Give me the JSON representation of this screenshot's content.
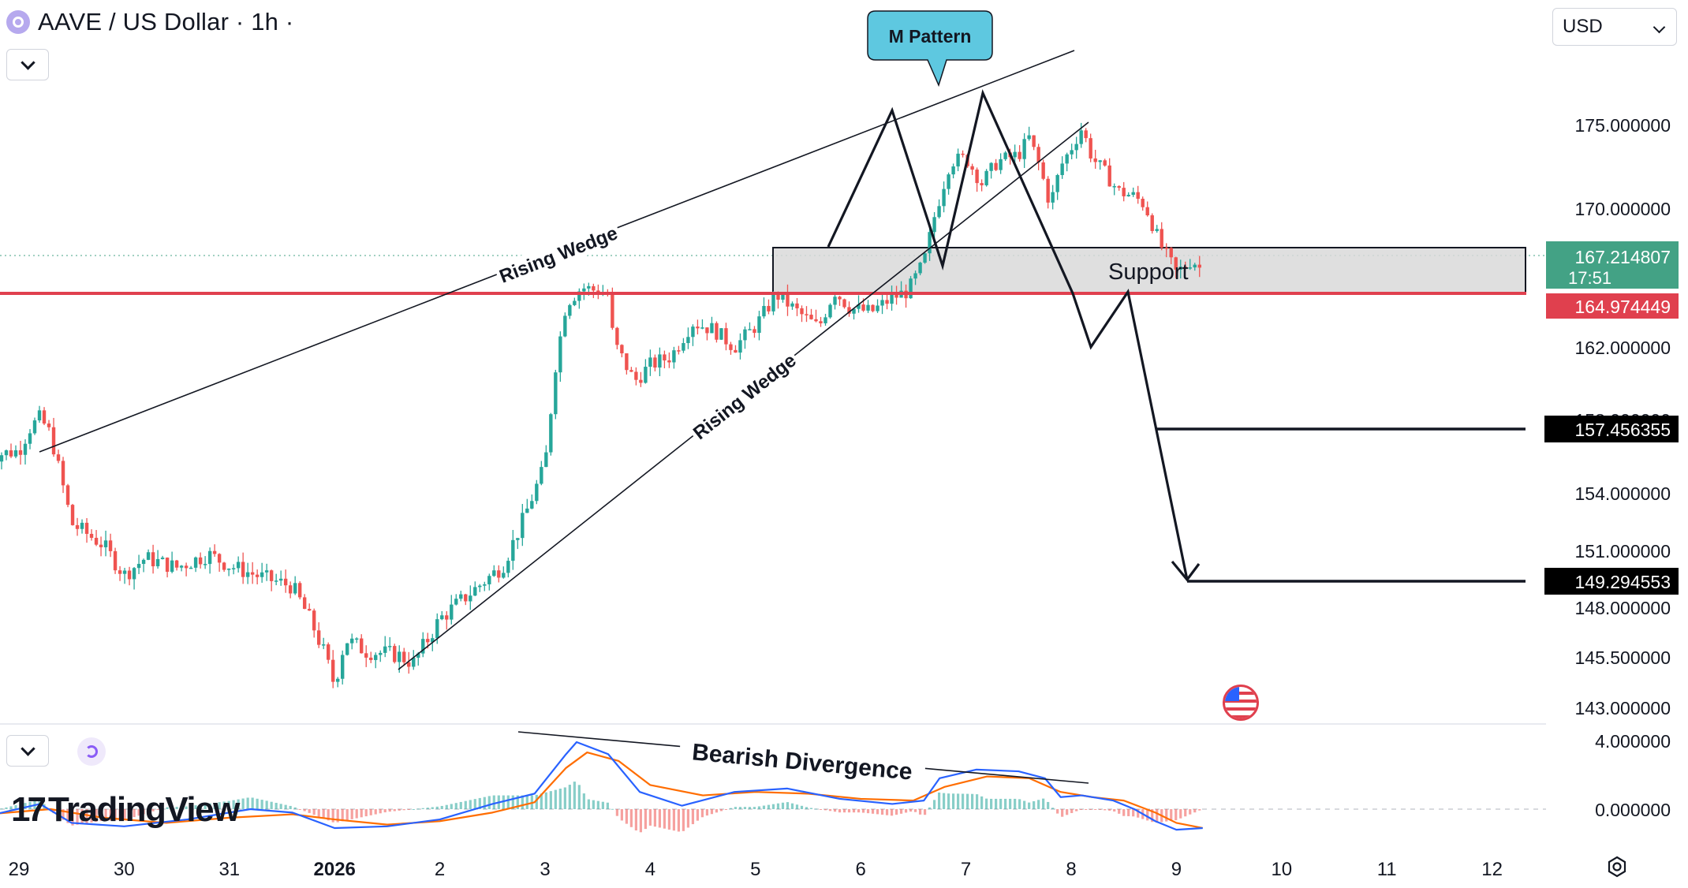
{
  "header": {
    "title": "AAVE / US Dollar · 1h ·",
    "currency": "USD"
  },
  "brand": {
    "logo_text": "TradingView",
    "logo_mark": "17"
  },
  "colors": {
    "up": "#26a69a",
    "down": "#ef5350",
    "accent_red": "#e0404e",
    "callout": "#5ec8e0",
    "macd_line": "#2962ff",
    "signal_line": "#ff6d00",
    "current_price_bg": "#43a285",
    "zone_fill": "#d9d9d9"
  },
  "icons": [
    "chevron-down-icon",
    "refresh-icon",
    "settings-icon",
    "us-flag-icon",
    "aave-icon"
  ],
  "chart_data": {
    "type": "candlestick",
    "title": "AAVE / US Dollar · 1h ·",
    "x_ticks": [
      "29",
      "30",
      "31",
      "2026",
      "2",
      "3",
      "4",
      "5",
      "6",
      "7",
      "8",
      "9",
      "10",
      "11",
      "12"
    ],
    "y_ticks": [
      "175.000000",
      "170.000000",
      "162.000000",
      "158.000000",
      "154.000000",
      "151.000000",
      "148.000000",
      "145.500000",
      "143.000000"
    ],
    "ylim": [
      142.5,
      177.5
    ],
    "current_price": "167.214807",
    "countdown": "17:51",
    "support_level": "164.974449",
    "targets": [
      "157.456355",
      "149.294553"
    ],
    "annotations": {
      "pattern": "M Pattern",
      "support": "Support",
      "wedge_upper": "Rising Wedge",
      "wedge_lower": "Rising Wedge",
      "divergence": "Bearish Divergence"
    },
    "close_path": [
      [
        28.7,
        156.0
      ],
      [
        29.0,
        156.3
      ],
      [
        29.1,
        157.5
      ],
      [
        29.2,
        158.1
      ],
      [
        29.3,
        157.2
      ],
      [
        29.5,
        152.4
      ],
      [
        29.8,
        151.3
      ],
      [
        30.0,
        149.7
      ],
      [
        30.2,
        150.6
      ],
      [
        30.5,
        150.1
      ],
      [
        30.8,
        150.8
      ],
      [
        31.0,
        150.2
      ],
      [
        31.3,
        149.6
      ],
      [
        31.6,
        149.1
      ],
      [
        31.8,
        147.0
      ],
      [
        31.9,
        145.7
      ],
      [
        32.0,
        144.1
      ],
      [
        32.1,
        146.4
      ],
      [
        32.3,
        145.8
      ],
      [
        32.6,
        145.6
      ],
      [
        32.75,
        145.2
      ],
      [
        33.0,
        147.4
      ],
      [
        33.3,
        148.8
      ],
      [
        33.6,
        150.2
      ],
      [
        33.8,
        152.7
      ],
      [
        34.0,
        155.5
      ],
      [
        34.1,
        161.0
      ],
      [
        34.2,
        164.5
      ],
      [
        34.35,
        165.4
      ],
      [
        34.5,
        165.2
      ],
      [
        34.6,
        165.0
      ],
      [
        34.65,
        162.3
      ],
      [
        34.85,
        160.1
      ],
      [
        35.0,
        161.0
      ],
      [
        35.2,
        161.5
      ],
      [
        35.4,
        163.4
      ],
      [
        35.6,
        163.0
      ],
      [
        35.8,
        162.0
      ],
      [
        36.0,
        163.2
      ],
      [
        36.2,
        165.0
      ],
      [
        36.4,
        164.0
      ],
      [
        36.6,
        163.1
      ],
      [
        36.75,
        165.2
      ],
      [
        36.9,
        164.2
      ],
      [
        37.1,
        164.0
      ],
      [
        37.3,
        164.8
      ],
      [
        37.45,
        165.2
      ],
      [
        37.6,
        166.8
      ],
      [
        37.7,
        169.5
      ],
      [
        37.85,
        172.8
      ],
      [
        38.0,
        173.0
      ],
      [
        38.15,
        171.5
      ],
      [
        38.3,
        172.8
      ],
      [
        38.5,
        173.2
      ],
      [
        38.6,
        174.2
      ],
      [
        38.7,
        172.5
      ],
      [
        38.8,
        170.2
      ],
      [
        38.9,
        172.5
      ],
      [
        39.0,
        173.6
      ],
      [
        39.1,
        174.8
      ],
      [
        39.2,
        173.0
      ],
      [
        39.3,
        172.3
      ],
      [
        39.45,
        171.0
      ],
      [
        39.6,
        170.7
      ],
      [
        39.7,
        170.2
      ],
      [
        39.85,
        167.8
      ],
      [
        40.0,
        166.2
      ],
      [
        40.15,
        167.0
      ],
      [
        40.25,
        166.3
      ]
    ],
    "macd": {
      "ylim": [
        -1.0,
        4.0
      ],
      "y_ticks": [
        "4.000000",
        "0.000000"
      ],
      "macd_line": [
        [
          28.7,
          -0.4
        ],
        [
          29.2,
          0.3
        ],
        [
          29.5,
          -0.8
        ],
        [
          30.0,
          -1.0
        ],
        [
          30.6,
          -0.6
        ],
        [
          31.2,
          0.0
        ],
        [
          31.6,
          -0.2
        ],
        [
          32.0,
          -1.1
        ],
        [
          32.5,
          -1.0
        ],
        [
          33.0,
          -0.6
        ],
        [
          33.5,
          0.3
        ],
        [
          33.9,
          0.9
        ],
        [
          34.2,
          3.2
        ],
        [
          34.3,
          3.9
        ],
        [
          34.6,
          3.2
        ],
        [
          34.9,
          1.0
        ],
        [
          35.3,
          0.2
        ],
        [
          35.8,
          1.0
        ],
        [
          36.3,
          1.2
        ],
        [
          36.8,
          0.6
        ],
        [
          37.3,
          0.3
        ],
        [
          37.6,
          0.5
        ],
        [
          37.75,
          1.8
        ],
        [
          38.1,
          2.3
        ],
        [
          38.5,
          2.2
        ],
        [
          38.75,
          1.8
        ],
        [
          38.9,
          0.7
        ],
        [
          39.1,
          0.8
        ],
        [
          39.4,
          0.5
        ],
        [
          39.6,
          0.0
        ],
        [
          39.8,
          -0.7
        ],
        [
          40.0,
          -1.2
        ],
        [
          40.25,
          -1.1
        ]
      ],
      "signal_line": [
        [
          28.7,
          -0.3
        ],
        [
          29.3,
          0.0
        ],
        [
          29.8,
          -0.5
        ],
        [
          30.4,
          -0.8
        ],
        [
          31.0,
          -0.5
        ],
        [
          31.6,
          -0.3
        ],
        [
          32.0,
          -0.6
        ],
        [
          32.5,
          -0.9
        ],
        [
          33.0,
          -0.7
        ],
        [
          33.5,
          -0.2
        ],
        [
          33.9,
          0.4
        ],
        [
          34.2,
          2.4
        ],
        [
          34.4,
          3.3
        ],
        [
          34.7,
          2.8
        ],
        [
          35.0,
          1.4
        ],
        [
          35.5,
          0.8
        ],
        [
          36.0,
          1.0
        ],
        [
          36.5,
          0.9
        ],
        [
          37.0,
          0.6
        ],
        [
          37.5,
          0.5
        ],
        [
          37.8,
          1.3
        ],
        [
          38.2,
          1.9
        ],
        [
          38.6,
          1.8
        ],
        [
          38.9,
          1.0
        ],
        [
          39.2,
          0.7
        ],
        [
          39.5,
          0.5
        ],
        [
          39.8,
          -0.2
        ],
        [
          40.0,
          -0.8
        ],
        [
          40.25,
          -1.1
        ]
      ]
    }
  }
}
